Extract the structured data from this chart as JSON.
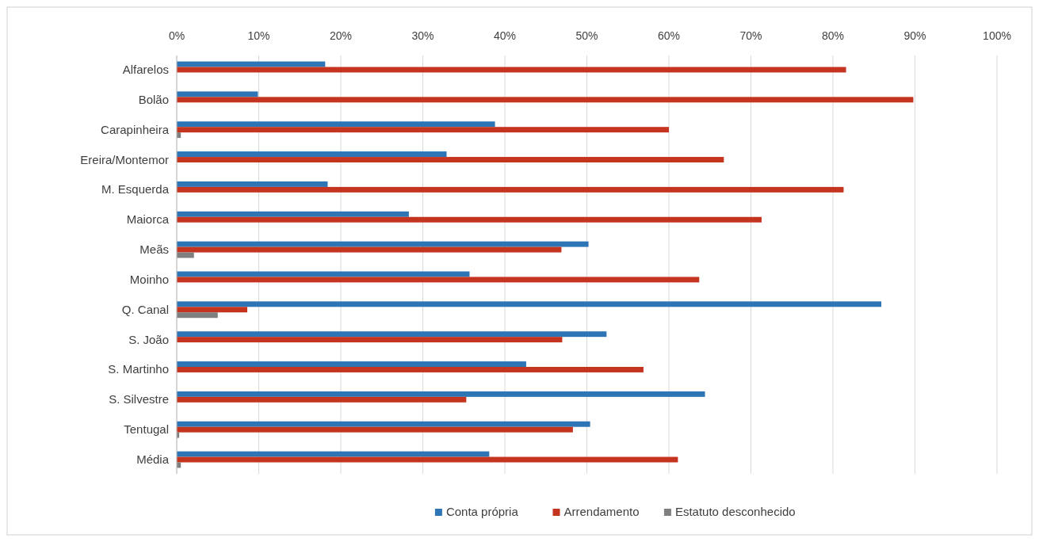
{
  "chart_data": {
    "type": "bar",
    "orientation": "horizontal",
    "categories": [
      "Alfarelos",
      "Bolão",
      "Carapinheira",
      "Ereira/Montemor",
      "M. Esquerda",
      "Maiorca",
      "Meãs",
      "Moinho",
      "Q. Canal",
      "S. João",
      "S. Martinho",
      "S. Silvestre",
      "Tentugal",
      "Média"
    ],
    "series": [
      {
        "name": "Conta própria",
        "color": "#2e75b6",
        "values": [
          18.1,
          9.9,
          38.8,
          32.9,
          18.4,
          28.3,
          50.2,
          35.7,
          85.9,
          52.4,
          42.6,
          64.4,
          50.4,
          38.1
        ]
      },
      {
        "name": "Arrendamento",
        "color": "#c5341f",
        "values": [
          81.6,
          89.8,
          60.0,
          66.7,
          81.3,
          71.3,
          46.9,
          63.7,
          8.6,
          47.0,
          56.9,
          35.3,
          48.3,
          61.1
        ]
      },
      {
        "name": "Estatuto desconhecido",
        "color": "#7f7f7f",
        "values": [
          0,
          0,
          0.5,
          0,
          0,
          0,
          2.1,
          0,
          5.0,
          0,
          0,
          0,
          0.3,
          0.5
        ]
      }
    ],
    "xlim": [
      0,
      100
    ],
    "xticks": [
      {
        "value": 0,
        "label": "0%"
      },
      {
        "value": 10,
        "label": "10%"
      },
      {
        "value": 20,
        "label": "20%"
      },
      {
        "value": 30,
        "label": "30%"
      },
      {
        "value": 40,
        "label": "40%"
      },
      {
        "value": 50,
        "label": "50%"
      },
      {
        "value": 60,
        "label": "60%"
      },
      {
        "value": 70,
        "label": "70%"
      },
      {
        "value": 80,
        "label": "80%"
      },
      {
        "value": 90,
        "label": "90%"
      },
      {
        "value": 100,
        "label": "100%"
      }
    ],
    "grid": "x",
    "legend": "bottom"
  }
}
